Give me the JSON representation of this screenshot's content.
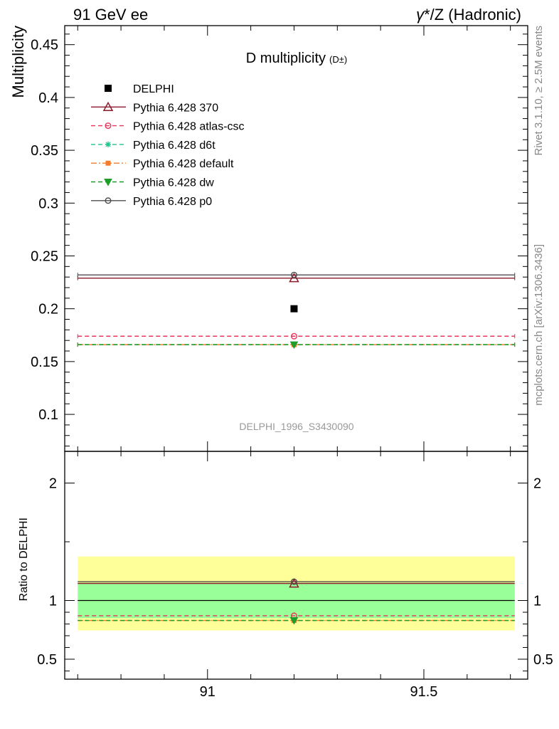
{
  "header": {
    "left": "91 GeV ee",
    "right_gamma": "γ",
    "right_rest": "*/Z (Hadronic)"
  },
  "side_texts": {
    "rivet": "Rivet 3.1.10, ≥ 2.5M events",
    "mcplots": "mcplots.cern.ch [arXiv:1306.3436]"
  },
  "chart_data": [
    {
      "type": "line",
      "title": "D multiplicity",
      "title_suffix": "(D±)",
      "ylabel": "Multiplicity",
      "watermark": "DELPHI_1996_S3430090",
      "xlim": [
        90.67,
        91.74
      ],
      "ylim": [
        0.065,
        0.468
      ],
      "y_ticks": [
        0.1,
        0.15,
        0.2,
        0.25,
        0.3,
        0.35,
        0.4,
        0.45
      ],
      "y_tick_labels": [
        "0.1",
        "0.15",
        "0.2",
        "0.25",
        "0.3",
        "0.35",
        "0.4",
        "0.45"
      ],
      "x_ticks": [
        91,
        91.5
      ],
      "data_point": {
        "name": "DELPHI",
        "x": 91.2,
        "y": 0.2,
        "color": "#000000"
      },
      "series": [
        {
          "name": "Pythia 6.428 370",
          "value": 0.229,
          "color": "#8b1a2b",
          "dash": "solid",
          "marker": "triangle"
        },
        {
          "name": "Pythia 6.428 atlas-csc",
          "value": 0.174,
          "color": "#e8345a",
          "dash": "dashed",
          "marker": "circle"
        },
        {
          "name": "Pythia 6.428 d6t",
          "value": 0.166,
          "color": "#1fc48e",
          "dash": "dashed",
          "marker": "star"
        },
        {
          "name": "Pythia 6.428 default",
          "value": 0.166,
          "color": "#f47c28",
          "dash": "dashdot",
          "marker": "square"
        },
        {
          "name": "Pythia 6.428 dw",
          "value": 0.166,
          "color": "#1d9e2b",
          "dash": "dashed",
          "marker": "triangle-down"
        },
        {
          "name": "Pythia 6.428 p0",
          "value": 0.232,
          "color": "#4d4d4d",
          "dash": "solid",
          "marker": "circle"
        }
      ],
      "legend_placement": "top-left"
    },
    {
      "type": "line",
      "ylabel": "Ratio to DELPHI",
      "xlim": [
        90.67,
        91.74
      ],
      "ylim": [
        0.33,
        2.27
      ],
      "y_ticks": [
        0.5,
        1,
        2
      ],
      "y_tick_labels": [
        "0.5",
        "1",
        "2"
      ],
      "x_ticks": [
        91,
        91.5
      ],
      "x_tick_labels": [
        "91",
        "91.5"
      ],
      "bands": {
        "inner": [
          0.85,
          1.15
        ],
        "outer": [
          0.745,
          1.375
        ],
        "inner_color": "#99ff99",
        "outer_color": "#ffff99"
      },
      "ratios": [
        1.145,
        0.87,
        0.83,
        0.83,
        0.83,
        1.16
      ]
    }
  ]
}
